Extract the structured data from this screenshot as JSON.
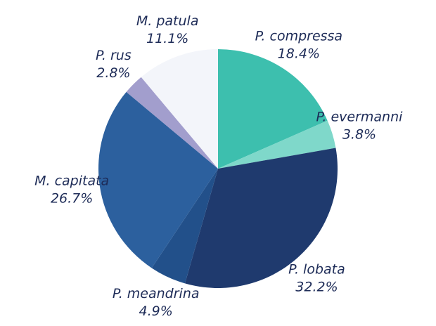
{
  "chart_data": {
    "type": "pie",
    "categories": [
      "P. compressa",
      "P. evermanni",
      "P. lobata",
      "P. meandrina",
      "M. capitata",
      "P. rus",
      "M. patula"
    ],
    "values": [
      18.4,
      3.8,
      32.2,
      4.9,
      26.7,
      2.8,
      11.1
    ],
    "value_labels": [
      "18.4%",
      "3.8%",
      "32.2%",
      "4.9%",
      "26.7%",
      "2.8%",
      "11.1%"
    ],
    "colors": [
      "#3dbfae",
      "#7fd8ca",
      "#1f3a6e",
      "#22508a",
      "#2c609e",
      "#a29ecd",
      "#f3f5fa"
    ]
  }
}
